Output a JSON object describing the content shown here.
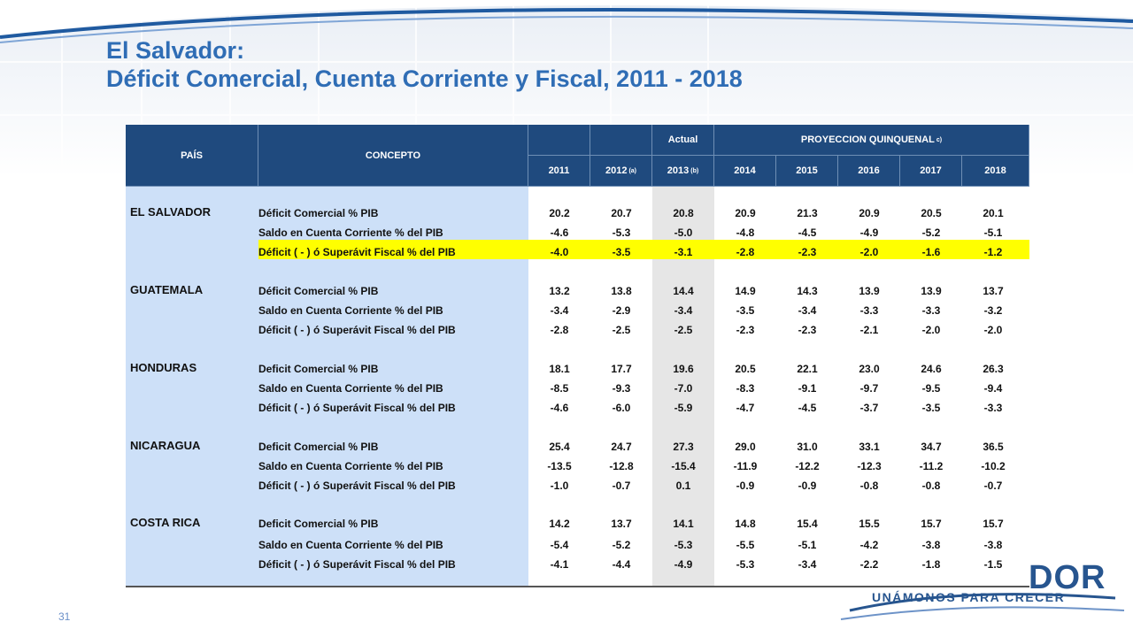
{
  "title": {
    "line1": "El Salvador:",
    "line2": "Déficit Comercial, Cuenta Corriente y Fiscal, 2011 - 2018"
  },
  "table": {
    "headers": {
      "pais": "PAÍS",
      "concepto": "CONCEPTO",
      "actual": "Actual",
      "proyeccion": "PROYECCION QUINQUENAL",
      "proyeccion_note": "c)",
      "years": [
        {
          "label": "2011",
          "note": ""
        },
        {
          "label": "2012",
          "note": "(a)"
        },
        {
          "label": "2013",
          "note": "(b)"
        },
        {
          "label": "2014",
          "note": ""
        },
        {
          "label": "2015",
          "note": ""
        },
        {
          "label": "2016",
          "note": ""
        },
        {
          "label": "2017",
          "note": ""
        },
        {
          "label": "2018",
          "note": ""
        }
      ]
    },
    "groups": [
      {
        "country": "EL SALVADOR",
        "rows": [
          {
            "concept": "Déficit Comercial % PIB",
            "values": [
              "20.2",
              "20.7",
              "20.8",
              "20.9",
              "21.3",
              "20.9",
              "20.5",
              "20.1"
            ],
            "highlight": false
          },
          {
            "concept": "Saldo en Cuenta Corriente % del PIB",
            "values": [
              "-4.6",
              "-5.3",
              "-5.0",
              "-4.8",
              "-4.5",
              "-4.9",
              "-5.2",
              "-5.1"
            ],
            "highlight": false
          },
          {
            "concept": "Déficit ( - ) ó Superávit Fiscal % del PIB",
            "values": [
              "-4.0",
              "-3.5",
              "-3.1",
              "-2.8",
              "-2.3",
              "-2.0",
              "-1.6",
              "-1.2"
            ],
            "highlight": true
          }
        ]
      },
      {
        "country": "GUATEMALA",
        "rows": [
          {
            "concept": "Déficit Comercial % PIB",
            "values": [
              "13.2",
              "13.8",
              "14.4",
              "14.9",
              "14.3",
              "13.9",
              "13.9",
              "13.7"
            ],
            "highlight": false
          },
          {
            "concept": "Saldo en Cuenta Corriente % del PIB",
            "values": [
              "-3.4",
              "-2.9",
              "-3.4",
              "-3.5",
              "-3.4",
              "-3.3",
              "-3.3",
              "-3.2"
            ],
            "highlight": false
          },
          {
            "concept": "Déficit ( - ) ó Superávit Fiscal % del PIB",
            "values": [
              "-2.8",
              "-2.5",
              "-2.5",
              "-2.3",
              "-2.3",
              "-2.1",
              "-2.0",
              "-2.0"
            ],
            "highlight": false
          }
        ]
      },
      {
        "country": "HONDURAS",
        "rows": [
          {
            "concept": "Deficit Comercial % PIB",
            "values": [
              "18.1",
              "17.7",
              "19.6",
              "20.5",
              "22.1",
              "23.0",
              "24.6",
              "26.3"
            ],
            "highlight": false
          },
          {
            "concept": "Saldo en Cuenta Corriente % del PIB",
            "values": [
              "-8.5",
              "-9.3",
              "-7.0",
              "-8.3",
              "-9.1",
              "-9.7",
              "-9.5",
              "-9.4"
            ],
            "highlight": false
          },
          {
            "concept": "Déficit ( - ) ó Superávit Fiscal % del PIB",
            "values": [
              "-4.6",
              "-6.0",
              "-5.9",
              "-4.7",
              "-4.5",
              "-3.7",
              "-3.5",
              "-3.3"
            ],
            "highlight": false
          }
        ]
      },
      {
        "country": "NICARAGUA",
        "rows": [
          {
            "concept": "Deficit Comercial % PIB",
            "values": [
              "25.4",
              "24.7",
              "27.3",
              "29.0",
              "31.0",
              "33.1",
              "34.7",
              "36.5"
            ],
            "highlight": false
          },
          {
            "concept": "Saldo en Cuenta Corriente % del PIB",
            "values": [
              "-13.5",
              "-12.8",
              "-15.4",
              "-11.9",
              "-12.2",
              "-12.3",
              "-11.2",
              "-10.2"
            ],
            "highlight": false
          },
          {
            "concept": "Déficit ( - ) ó Superávit Fiscal % del PIB",
            "values": [
              "-1.0",
              "-0.7",
              "0.1",
              "-0.9",
              "-0.9",
              "-0.8",
              "-0.8",
              "-0.7"
            ],
            "highlight": false
          }
        ]
      },
      {
        "country": "COSTA RICA",
        "rows": [
          {
            "concept": "Deficit Comercial % PIB",
            "values": [
              "14.2",
              "13.7",
              "14.1",
              "14.8",
              "15.4",
              "15.5",
              "15.7",
              "15.7"
            ],
            "highlight": false
          },
          {
            "concept": "Saldo en Cuenta Corriente % del PIB",
            "values": [
              "-5.4",
              "-5.2",
              "-5.3",
              "-5.5",
              "-5.1",
              "-4.2",
              "-3.8",
              "-3.8"
            ],
            "highlight": false
          },
          {
            "concept": "Déficit ( - ) ó Superávit Fiscal % del PIB",
            "values": [
              "-4.1",
              "-4.4",
              "-4.9",
              "-5.3",
              "-3.4",
              "-2.2",
              "-1.8",
              "-1.5"
            ],
            "highlight": false
          }
        ]
      }
    ]
  },
  "footer": {
    "page_number": "31",
    "logo_text": "DOR",
    "slogan": "UNÁMONOS PARA CRECER"
  },
  "colors": {
    "title": "#2f6db5",
    "header_bg": "#1f4a7e",
    "country_col": "#cde0f8",
    "highlight": "#ffff00",
    "actual_col": "#e6e6e6"
  }
}
